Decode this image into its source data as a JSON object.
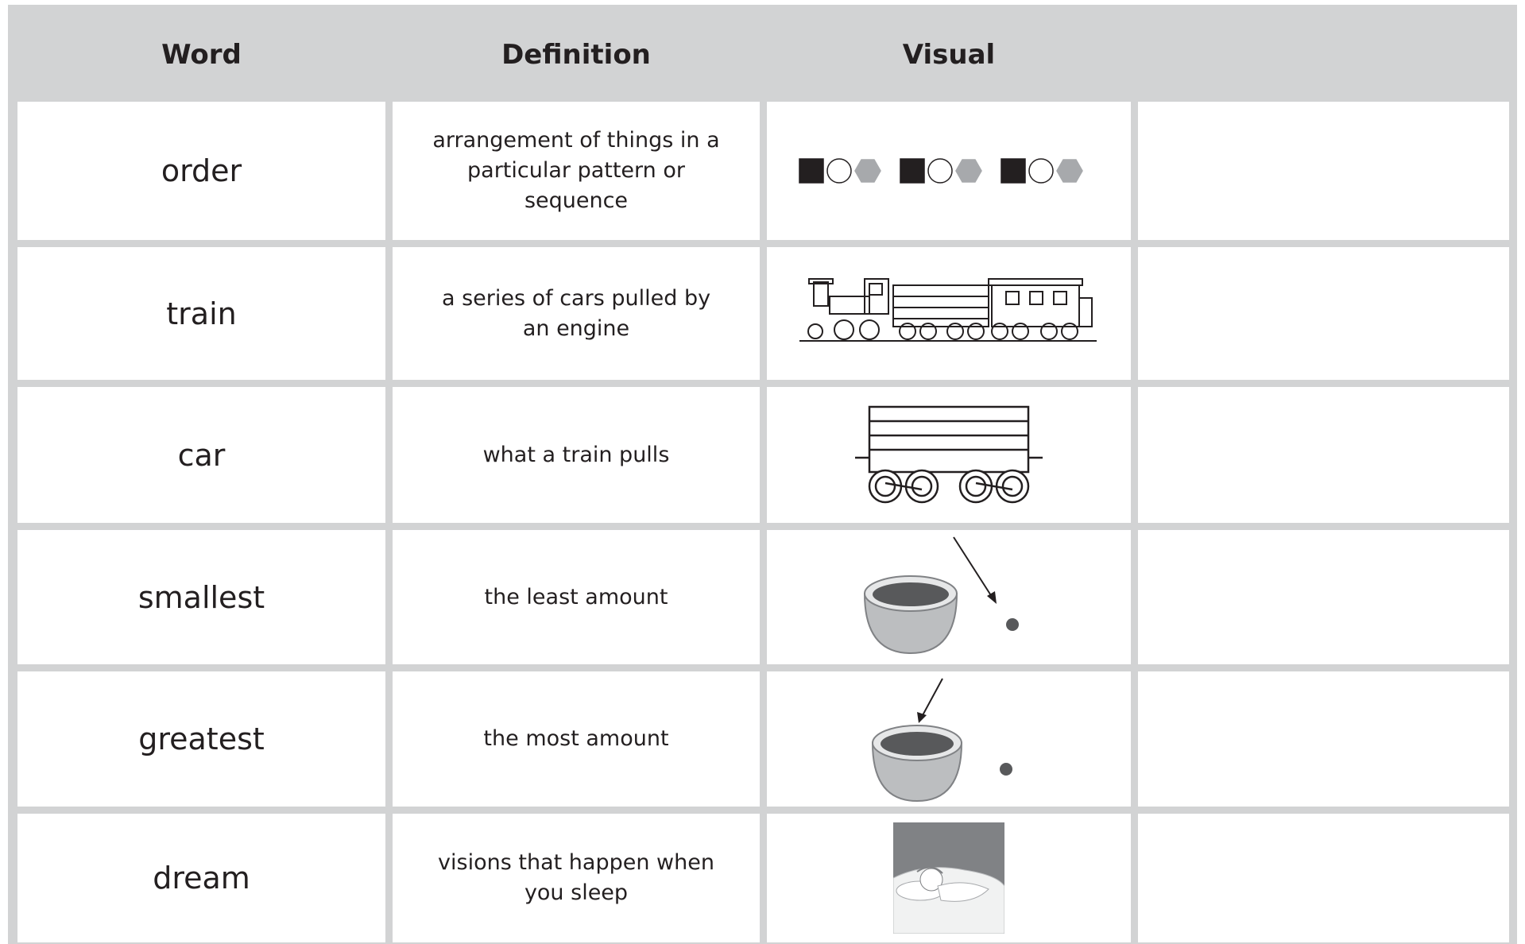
{
  "table": {
    "header": [
      "Word",
      "Definition",
      "Visual"
    ],
    "rows": [
      {
        "word": "order",
        "definition": "arrangement of things in a particular pattern or sequence"
      },
      {
        "word": "train",
        "definition": "a series of cars pulled by an engine"
      },
      {
        "word": "car",
        "definition": "what a train pulls"
      },
      {
        "word": "smallest",
        "definition": "the least amount"
      },
      {
        "word": "greatest",
        "definition": "the most amount"
      },
      {
        "word": "dream",
        "definition": "visions that happen when you sleep"
      }
    ]
  }
}
